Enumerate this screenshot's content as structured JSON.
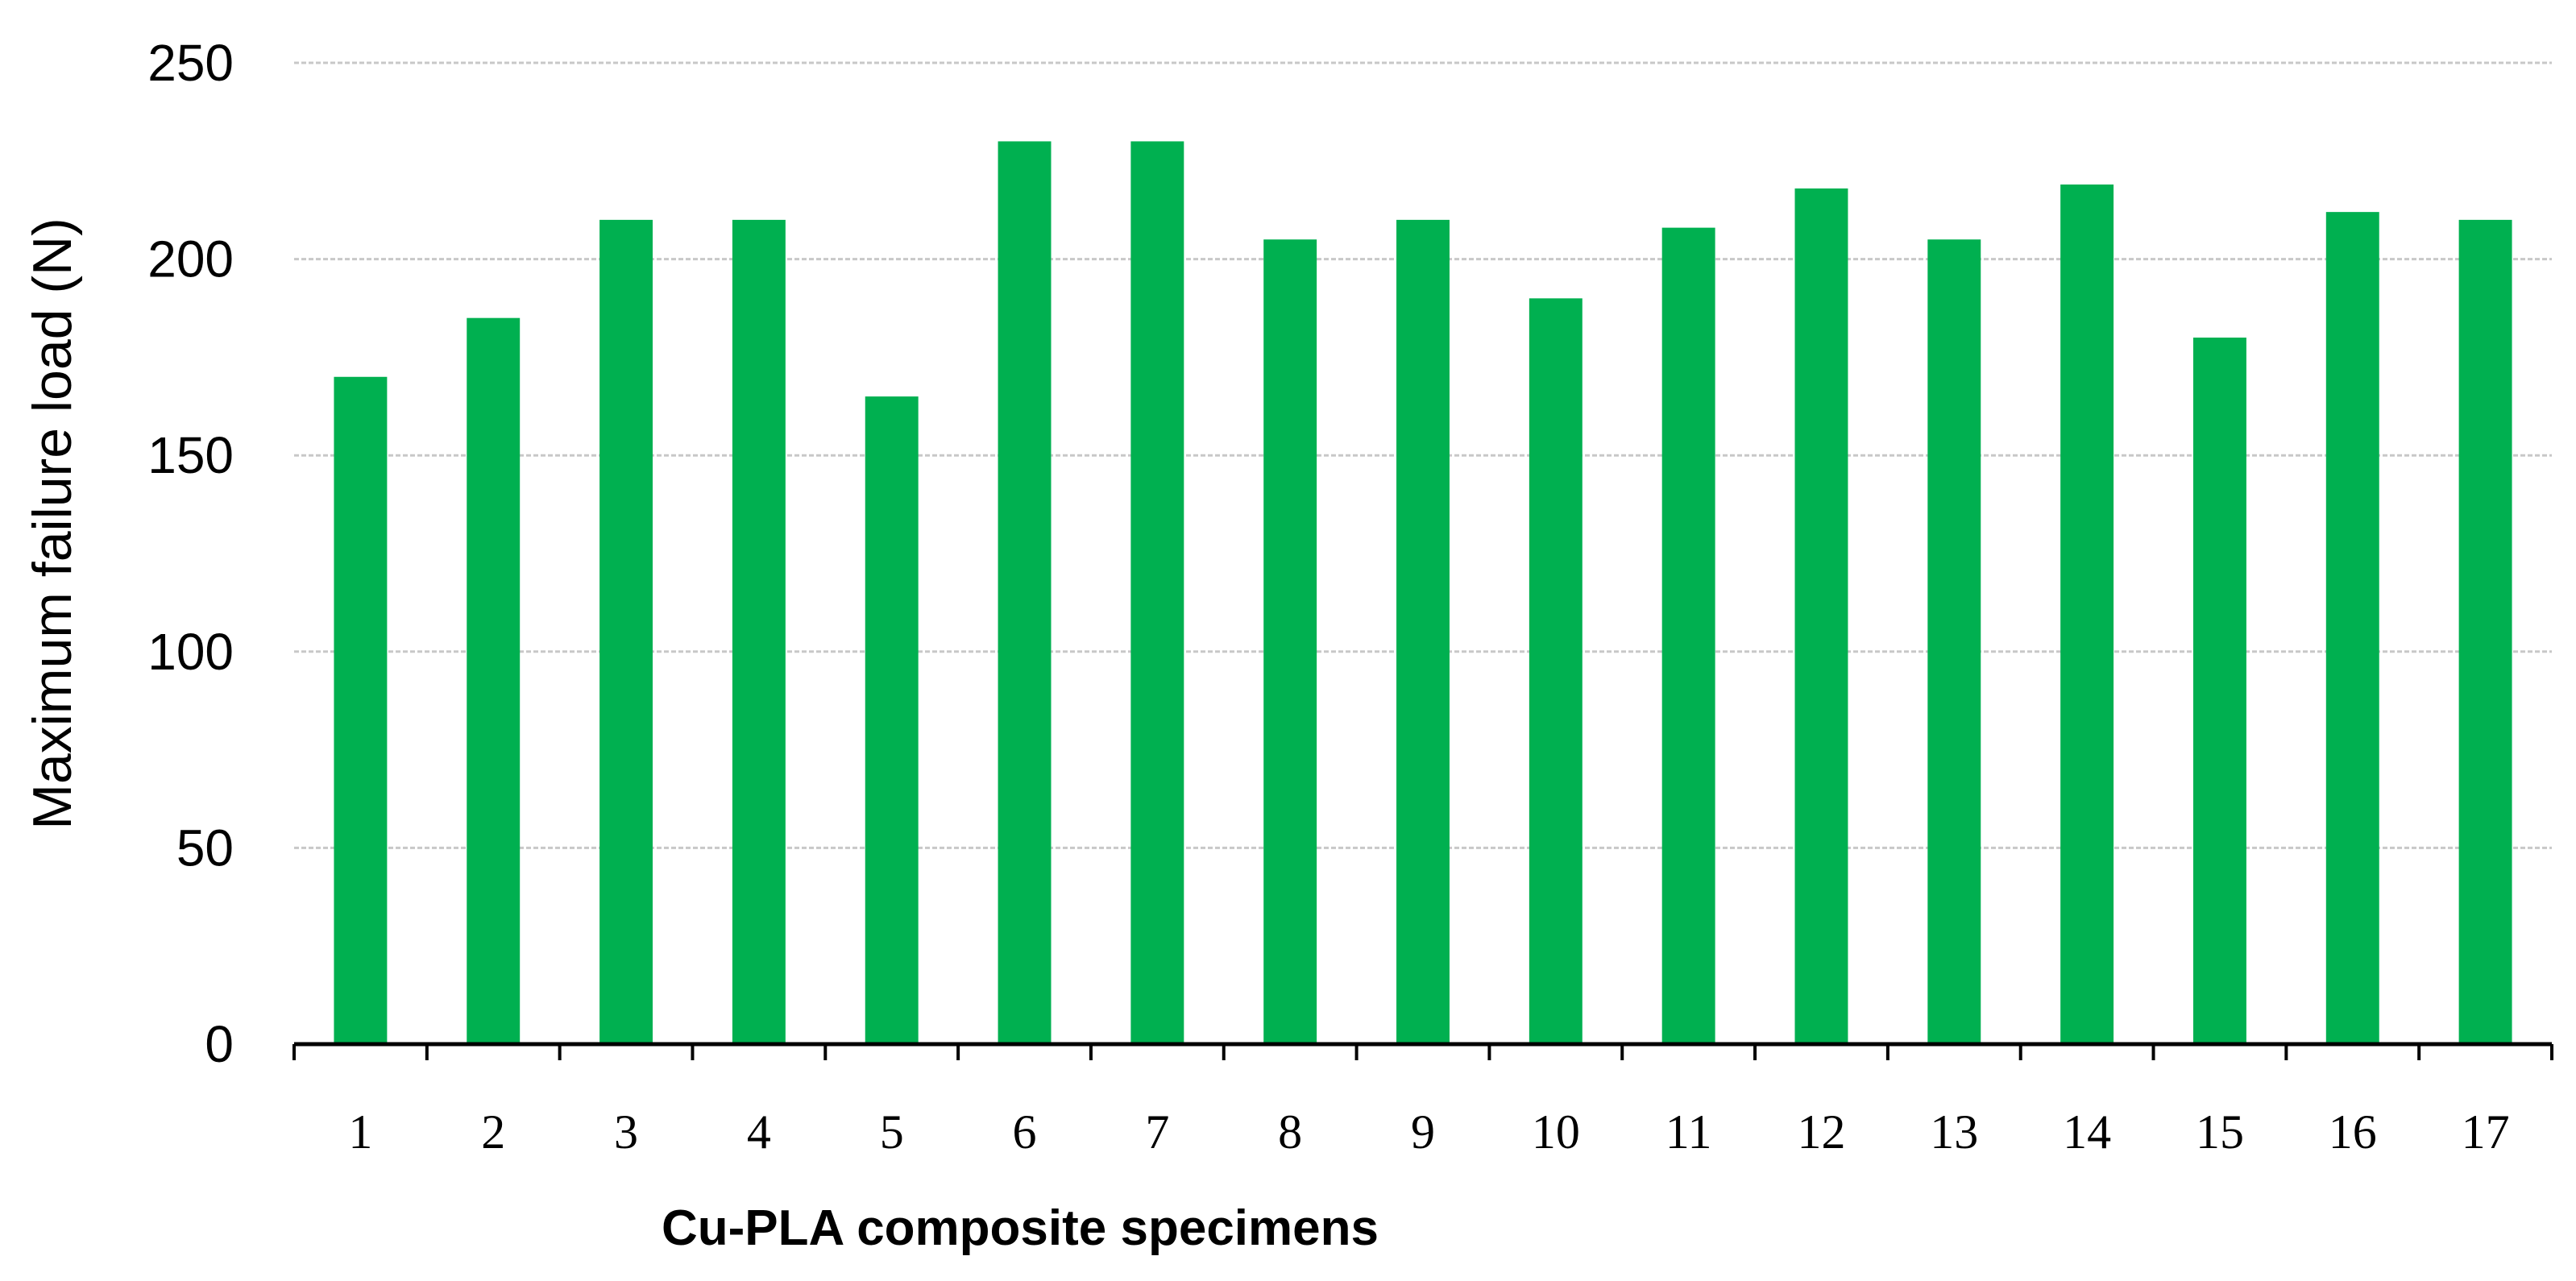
{
  "chart_data": {
    "type": "bar",
    "categories": [
      "1",
      "2",
      "3",
      "4",
      "5",
      "6",
      "7",
      "8",
      "9",
      "10",
      "11",
      "12",
      "13",
      "14",
      "15",
      "16",
      "17"
    ],
    "values": [
      170,
      185,
      210,
      210,
      165,
      230,
      230,
      205,
      210,
      190,
      208,
      218,
      205,
      219,
      180,
      212,
      210
    ],
    "xlabel": "Cu-PLA composite specimens",
    "ylabel": "Maximum failure load (N)",
    "ylim": [
      0,
      250
    ],
    "yticks": [
      0,
      50,
      100,
      150,
      200,
      250
    ],
    "grid": true,
    "bar_color": "#00b050"
  }
}
